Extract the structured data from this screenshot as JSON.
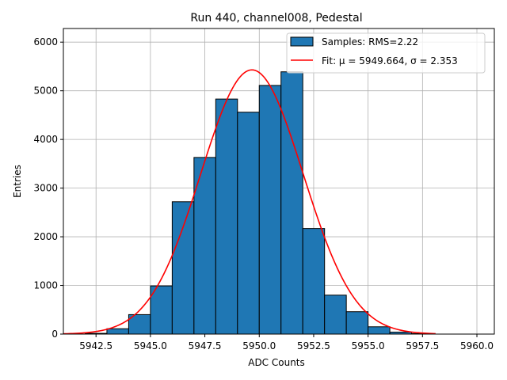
{
  "chart_data": {
    "type": "bar",
    "title": "Run 440, channel008, Pedestal",
    "xlabel": "ADC Counts",
    "ylabel": "Entries",
    "xlim": [
      5941.0,
      5960.8
    ],
    "ylim": [
      0,
      6280
    ],
    "x_ticks": [
      5942.5,
      5945.0,
      5947.5,
      5950.0,
      5952.5,
      5955.0,
      5957.5,
      5960.0
    ],
    "x_tick_labels": [
      "5942.5",
      "5945.0",
      "5947.5",
      "5950.0",
      "5952.5",
      "5955.0",
      "5957.5",
      "5960.0"
    ],
    "y_ticks": [
      0,
      1000,
      2000,
      3000,
      4000,
      5000,
      6000
    ],
    "y_tick_labels": [
      "0",
      "1000",
      "2000",
      "3000",
      "4000",
      "5000",
      "6000"
    ],
    "grid": true,
    "legend_position": "top-right",
    "series": [
      {
        "name": "Samples: RMS=2.22",
        "kind": "histogram",
        "color": "#1f77b4",
        "edge_color": "#000000",
        "bin_edges": [
          5942,
          5943,
          5944,
          5945,
          5946,
          5947,
          5948,
          5949,
          5950,
          5951,
          5952,
          5953,
          5954,
          5955,
          5956,
          5957,
          5958
        ],
        "values": [
          15,
          110,
          400,
          990,
          2720,
          3630,
          4830,
          4560,
          5110,
          5390,
          2170,
          800,
          460,
          150,
          40,
          10
        ]
      },
      {
        "name": "Fit: μ = 5949.664, σ = 2.353",
        "kind": "line",
        "color": "#ff0000",
        "mu": 5949.664,
        "sigma": 2.353,
        "amplitude": 5430,
        "x_range": [
          5941.0,
          5958.1
        ]
      }
    ]
  }
}
